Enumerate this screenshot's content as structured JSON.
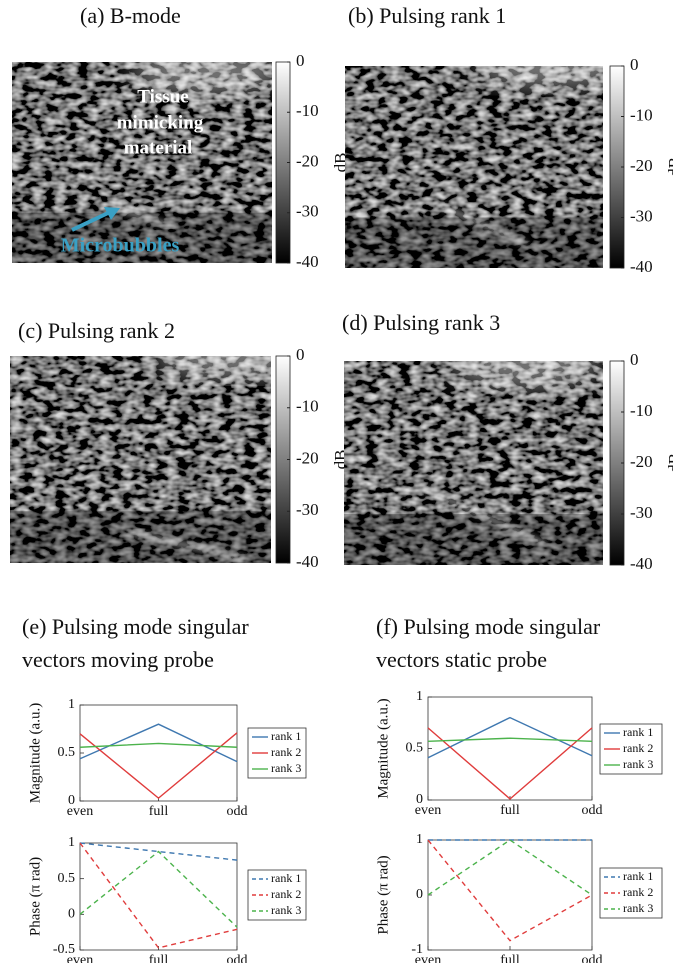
{
  "chart_data": [
    {
      "type": "image",
      "title": "(a)  B-mode",
      "colorbar_label": "dB",
      "clim": [
        -40,
        0
      ],
      "cticks": [
        0,
        -10,
        -20,
        -30,
        -40
      ],
      "annotations": [
        "Tissue",
        "mimicking",
        "material",
        "Microbubbles"
      ]
    },
    {
      "type": "image",
      "title": "(b) Pulsing rank 1",
      "colorbar_label": "dB",
      "clim": [
        -40,
        0
      ],
      "cticks": [
        0,
        -10,
        -20,
        -30,
        -40
      ]
    },
    {
      "type": "image",
      "title": "(c)  Pulsing rank 2",
      "colorbar_label": "dB",
      "clim": [
        -40,
        0
      ],
      "cticks": [
        0,
        -10,
        -20,
        -30,
        -40
      ]
    },
    {
      "type": "image",
      "title": "(d)  Pulsing rank 3",
      "colorbar_label": "dB",
      "clim": [
        -40,
        0
      ],
      "cticks": [
        0,
        -10,
        -20,
        -30,
        -40
      ]
    },
    {
      "type": "line",
      "title": "(e)  Pulsing mode singular vectors moving probe",
      "ylabel": "Magnitude (a.u.)",
      "categories": [
        "even",
        "full",
        "odd"
      ],
      "ylim": [
        0,
        1
      ],
      "yticks": [
        0,
        0.5,
        1
      ],
      "line_style": "solid",
      "series": [
        {
          "name": "rank 1",
          "color": "#3f78b0",
          "values": [
            0.44,
            0.8,
            0.41
          ]
        },
        {
          "name": "rank 2",
          "color": "#e03c3c",
          "values": [
            0.7,
            0.03,
            0.71
          ]
        },
        {
          "name": "rank 3",
          "color": "#4cb34c",
          "values": [
            0.56,
            0.6,
            0.56
          ]
        }
      ]
    },
    {
      "type": "line",
      "ylabel": "Phase (π rad)",
      "categories": [
        "even",
        "full",
        "odd"
      ],
      "ylim": [
        -0.5,
        1
      ],
      "yticks": [
        -0.5,
        0,
        0.5,
        1
      ],
      "line_style": "dashed",
      "series": [
        {
          "name": "rank 1",
          "color": "#3f78b0",
          "values": [
            1,
            0.88,
            0.76
          ]
        },
        {
          "name": "rank 2",
          "color": "#e03c3c",
          "values": [
            1,
            -0.47,
            -0.21
          ]
        },
        {
          "name": "rank 3",
          "color": "#4cb34c",
          "values": [
            0,
            0.88,
            -0.18
          ]
        }
      ]
    },
    {
      "type": "line",
      "title": "(f) Pulsing mode singular vectors static probe",
      "ylabel": "Magnitude (a.u.)",
      "categories": [
        "even",
        "full",
        "odd"
      ],
      "ylim": [
        0,
        1
      ],
      "yticks": [
        0,
        0.5,
        1
      ],
      "line_style": "solid",
      "series": [
        {
          "name": "rank 1",
          "color": "#3f78b0",
          "values": [
            0.41,
            0.8,
            0.43
          ]
        },
        {
          "name": "rank 2",
          "color": "#e03c3c",
          "values": [
            0.7,
            0.01,
            0.7
          ]
        },
        {
          "name": "rank 3",
          "color": "#4cb34c",
          "values": [
            0.57,
            0.6,
            0.57
          ]
        }
      ]
    },
    {
      "type": "line",
      "ylabel": "Phase (π rad)",
      "categories": [
        "even",
        "full",
        "odd"
      ],
      "ylim": [
        -1,
        1
      ],
      "yticks": [
        -1,
        0,
        1
      ],
      "line_style": "dashed",
      "series": [
        {
          "name": "rank 1",
          "color": "#3f78b0",
          "values": [
            1,
            1,
            1
          ]
        },
        {
          "name": "rank 2",
          "color": "#e03c3c",
          "values": [
            1,
            -0.83,
            0
          ]
        },
        {
          "name": "rank 3",
          "color": "#4cb34c",
          "values": [
            0,
            1,
            0
          ]
        }
      ]
    }
  ]
}
